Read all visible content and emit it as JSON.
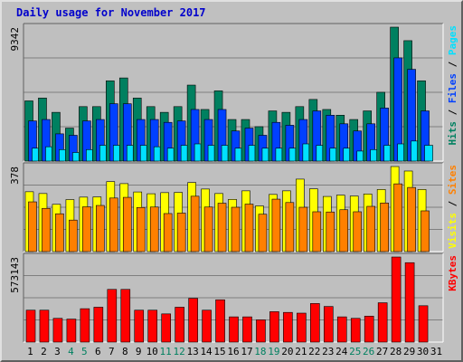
{
  "title": "Daily usage for November 2017",
  "colors": {
    "title": "#0000cc",
    "hits": "#008060",
    "files": "#0040ff",
    "pages": "#00e0ff",
    "visits": "#ffff00",
    "sites": "#ff8000",
    "kbytes": "#ff0000",
    "weekend_label": "#008060",
    "weekday_label": "#000000",
    "panel_bg": "#bfbfbf",
    "grid": "#7f7f7f"
  },
  "chart_data": [
    {
      "type": "bar",
      "name": "hits-files-pages",
      "max_label": "9342",
      "ylim": [
        0,
        9342
      ],
      "grid": true,
      "categories": [
        "1",
        "2",
        "3",
        "4",
        "5",
        "6",
        "7",
        "8",
        "9",
        "10",
        "11",
        "12",
        "13",
        "14",
        "15",
        "16",
        "17",
        "18",
        "19",
        "20",
        "21",
        "22",
        "23",
        "24",
        "25",
        "26",
        "27",
        "28",
        "29",
        "30",
        "31"
      ],
      "weekend": [
        4,
        5,
        11,
        12,
        18,
        19,
        25,
        26
      ],
      "right_labels": [
        {
          "text": "Hits",
          "color": "#008060"
        },
        {
          "text": "Files",
          "color": "#0040ff"
        },
        {
          "text": "Pages",
          "color": "#00e0ff"
        }
      ],
      "series": [
        {
          "name": "Hits",
          "values": [
            4200,
            4400,
            3400,
            2300,
            3800,
            3800,
            5600,
            5800,
            4400,
            3800,
            3400,
            3800,
            5300,
            3600,
            4900,
            2900,
            2900,
            2400,
            3500,
            3400,
            3800,
            4300,
            3600,
            3200,
            2900,
            3500,
            4800,
            9342,
            8400,
            5600,
            0
          ]
        },
        {
          "name": "Files",
          "values": [
            2800,
            2900,
            1900,
            1800,
            2800,
            2900,
            4000,
            4000,
            2900,
            2900,
            2700,
            2800,
            3600,
            2900,
            3600,
            2100,
            2300,
            1800,
            2700,
            2500,
            2900,
            3500,
            3200,
            2600,
            2100,
            2600,
            3700,
            7200,
            6400,
            3500,
            0
          ]
        },
        {
          "name": "Pages",
          "values": [
            900,
            1000,
            800,
            600,
            800,
            1100,
            1100,
            1100,
            1100,
            1000,
            900,
            1100,
            1200,
            1100,
            1100,
            900,
            1100,
            900,
            900,
            900,
            1200,
            1100,
            900,
            900,
            700,
            800,
            1100,
            1200,
            1400,
            1100,
            0
          ]
        }
      ]
    },
    {
      "type": "bar",
      "name": "visits-sites",
      "max_label": "378",
      "ylim": [
        0,
        378
      ],
      "grid": true,
      "right_labels": [
        {
          "text": "Visits",
          "color": "#ffff00"
        },
        {
          "text": "Sites",
          "color": "#ff8000"
        }
      ],
      "series": [
        {
          "name": "Visits",
          "values": [
            266,
            258,
            210,
            231,
            242,
            243,
            311,
            302,
            265,
            257,
            262,
            263,
            307,
            278,
            258,
            232,
            270,
            203,
            254,
            270,
            322,
            279,
            245,
            251,
            247,
            256,
            276,
            378,
            358,
            276,
            0
          ]
        },
        {
          "name": "Sites",
          "values": [
            221,
            192,
            168,
            140,
            199,
            205,
            238,
            241,
            196,
            198,
            169,
            171,
            246,
            198,
            215,
            197,
            211,
            166,
            233,
            218,
            197,
            177,
            176,
            186,
            177,
            201,
            216,
            301,
            285,
            181,
            0
          ]
        }
      ]
    },
    {
      "type": "bar",
      "name": "kbytes",
      "max_label": "573143",
      "ylim": [
        0,
        573143
      ],
      "grid": true,
      "right_labels": [
        {
          "text": "KBytes",
          "color": "#ff0000"
        }
      ],
      "series": [
        {
          "name": "KBytes",
          "values": [
            215000,
            215000,
            160000,
            155000,
            225000,
            235000,
            355000,
            355000,
            215000,
            215000,
            190000,
            235000,
            295000,
            215000,
            285000,
            170000,
            170000,
            150000,
            205000,
            200000,
            195000,
            260000,
            240000,
            170000,
            160000,
            175000,
            265000,
            573143,
            535000,
            245000,
            0
          ]
        }
      ]
    }
  ]
}
